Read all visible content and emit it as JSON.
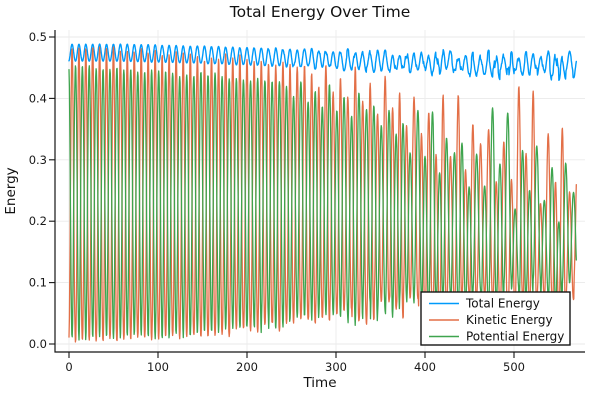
{
  "chart_data": {
    "type": "line",
    "title": "Total Energy Over Time",
    "xlabel": "Time",
    "ylabel": "Energy",
    "xlim": [
      -16,
      580
    ],
    "ylim": [
      -0.013,
      0.511
    ],
    "xticks": [
      0,
      100,
      200,
      300,
      400,
      500
    ],
    "xtick_labels": [
      "0",
      "100",
      "200",
      "300",
      "400",
      "500"
    ],
    "yticks": [
      0.0,
      0.1,
      0.2,
      0.3,
      0.4,
      0.5
    ],
    "ytick_labels": [
      "0.0",
      "0.1",
      "0.2",
      "0.3",
      "0.4",
      "0.5"
    ],
    "grid": true,
    "legend_position": "bottom-right",
    "t_start": 0,
    "t_end": 570,
    "dt": 0.4,
    "colors": {
      "background": "#FFFFFF",
      "grid": "#EAEAEA",
      "axis": "#151515",
      "legend_border": "#151515"
    },
    "oscillation": {
      "period_start": 15.4,
      "period_end": 17.2,
      "phase_jitter": [
        [
          0,
          0
        ],
        [
          220,
          0.01
        ],
        [
          320,
          0.05
        ],
        [
          430,
          0.1
        ],
        [
          570,
          0.14
        ]
      ],
      "alternation": [
        [
          0,
          0
        ],
        [
          330,
          0.02
        ],
        [
          430,
          0.18
        ],
        [
          570,
          0.3
        ]
      ]
    },
    "series": [
      {
        "name": "Total Energy",
        "color": "#009AFA",
        "role": "total",
        "mid_envelope": [
          [
            0,
            0.4745
          ],
          [
            60,
            0.4745
          ],
          [
            150,
            0.471
          ],
          [
            250,
            0.466
          ],
          [
            350,
            0.461
          ],
          [
            450,
            0.457
          ],
          [
            570,
            0.4525
          ]
        ],
        "ripple_amp": [
          [
            0,
            0.0275
          ],
          [
            200,
            0.028
          ],
          [
            400,
            0.03
          ],
          [
            570,
            0.032
          ]
        ],
        "noise_amp": [
          [
            0,
            0
          ],
          [
            200,
            0.001
          ],
          [
            300,
            0.004
          ],
          [
            420,
            0.009
          ],
          [
            570,
            0.013
          ]
        ],
        "start_value": 0.459,
        "end_value": 0.447
      },
      {
        "name": "Kinetic Energy",
        "color": "#E36F47",
        "role": "kinetic",
        "peak_envelope": [
          [
            0,
            0.4875
          ],
          [
            80,
            0.484
          ],
          [
            160,
            0.477
          ],
          [
            240,
            0.468
          ],
          [
            320,
            0.455
          ],
          [
            400,
            0.444
          ],
          [
            480,
            0.434
          ],
          [
            570,
            0.425
          ]
        ],
        "min_envelope": [
          [
            0,
            0.004
          ],
          [
            150,
            0.012
          ],
          [
            250,
            0.03
          ],
          [
            350,
            0.05
          ],
          [
            450,
            0.065
          ],
          [
            570,
            0.075
          ]
        ],
        "peak_scatter": [
          [
            0,
            0.01
          ],
          [
            220,
            0.03
          ],
          [
            320,
            0.12
          ],
          [
            420,
            0.22
          ],
          [
            570,
            0.3
          ]
        ],
        "start_value": 0.0
      },
      {
        "name": "Potential Energy",
        "color": "#3EA44E",
        "role": "potential",
        "peak_envelope": [
          [
            0,
            0.4555
          ],
          [
            80,
            0.451
          ],
          [
            160,
            0.4445
          ],
          [
            240,
            0.434
          ],
          [
            320,
            0.421
          ],
          [
            400,
            0.408
          ],
          [
            480,
            0.394
          ],
          [
            570,
            0.378
          ]
        ],
        "min_envelope": [
          [
            0,
            0.008
          ],
          [
            150,
            0.015
          ],
          [
            250,
            0.035
          ],
          [
            350,
            0.055
          ],
          [
            450,
            0.07
          ],
          [
            570,
            0.085
          ]
        ],
        "peak_scatter": [
          [
            0,
            0.01
          ],
          [
            220,
            0.03
          ],
          [
            320,
            0.12
          ],
          [
            420,
            0.22
          ],
          [
            570,
            0.3
          ]
        ],
        "start_value": 0.455,
        "end_value": 0.37
      }
    ]
  }
}
